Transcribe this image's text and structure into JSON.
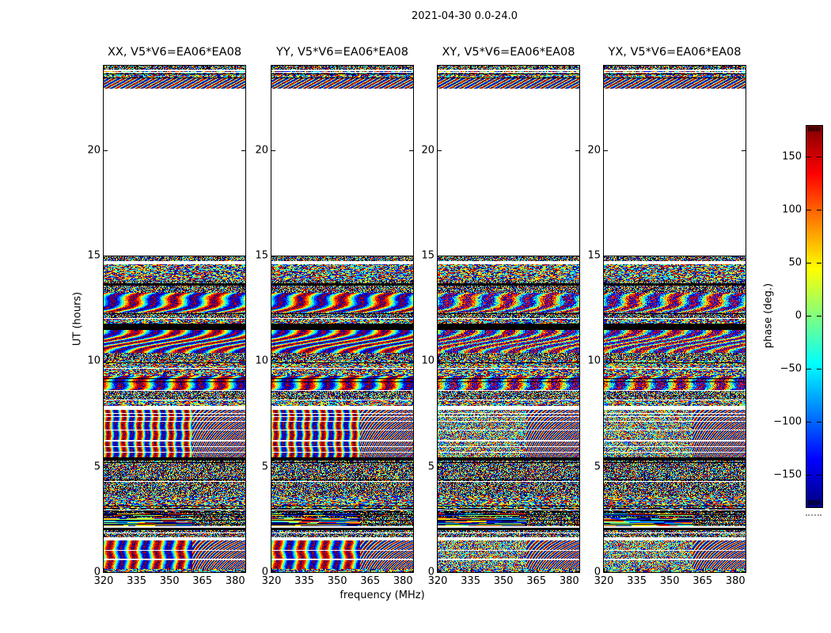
{
  "figure": {
    "title": "2021-04-30 0.0-24.0",
    "background": "#ffffff",
    "foreground": "#000000"
  },
  "chart_data": {
    "type": "heatmap",
    "title": "2021-04-30 0.0-24.0",
    "xlabel": "frequency (MHz)",
    "ylabel": "UT (hours)",
    "colorbar_label": "phase (deg.)",
    "x_range_mhz": [
      320,
      384.6
    ],
    "x_ticks": [
      320,
      335,
      350,
      365,
      380
    ],
    "y_range_hours": [
      0,
      24
    ],
    "y_ticks": [
      0,
      5,
      10,
      15,
      20
    ],
    "value_range_deg": [
      -180,
      180
    ],
    "colormap": "jet",
    "colorbar_ticks": [
      150,
      100,
      50,
      0,
      -50,
      -100,
      -150
    ],
    "colorbar_tick_labels": [
      "150",
      "100",
      "50",
      "0",
      "−50",
      "−100",
      "−150"
    ],
    "colormap_stops": [
      {
        "pos": 0.0,
        "color": "#7f0000"
      },
      {
        "pos": 0.125,
        "color": "#ff0000"
      },
      {
        "pos": 0.25,
        "color": "#ff8000"
      },
      {
        "pos": 0.375,
        "color": "#ffff00"
      },
      {
        "pos": 0.5,
        "color": "#80ff80"
      },
      {
        "pos": 0.625,
        "color": "#00ffff"
      },
      {
        "pos": 0.75,
        "color": "#0080ff"
      },
      {
        "pos": 0.875,
        "color": "#0000ff"
      },
      {
        "pos": 1.0,
        "color": "#00007f"
      }
    ],
    "panels": [
      {
        "id": "XX",
        "title": "XX, V5*V6=EA06*EA08",
        "family": "parallel",
        "seed": 11
      },
      {
        "id": "YY",
        "title": "YY, V5*V6=EA06*EA08",
        "family": "parallel",
        "seed": 23
      },
      {
        "id": "XY",
        "title": "XY, V5*V6=EA06*EA08",
        "family": "cross",
        "seed": 37
      },
      {
        "id": "YX",
        "title": "YX, V5*V6=EA06*EA08",
        "family": "cross",
        "seed": 51
      }
    ],
    "observed_time_ranges_hours": [
      [
        0.0,
        15.0
      ],
      [
        22.92,
        24.0
      ]
    ],
    "blank_time_ranges_hours": [
      [
        15.0,
        22.92
      ]
    ],
    "bands": [
      {
        "t_hi": 24.0,
        "t_lo": 23.82,
        "texture": "fine"
      },
      {
        "t_hi": 23.82,
        "t_lo": 23.74,
        "texture": "white"
      },
      {
        "t_hi": 23.74,
        "t_lo": 23.46,
        "texture": "noise"
      },
      {
        "t_hi": 23.46,
        "t_lo": 23.4,
        "texture": "black"
      },
      {
        "t_hi": 23.4,
        "t_lo": 22.92,
        "texture": "stripes",
        "stripe_cycles": 14,
        "white_lines_hours": []
      },
      {
        "t_hi": 22.92,
        "t_lo": 15.0,
        "texture": "white"
      },
      {
        "t_hi": 15.0,
        "t_lo": 14.74,
        "texture": "fine"
      },
      {
        "t_hi": 14.74,
        "t_lo": 14.62,
        "texture": "white"
      },
      {
        "t_hi": 14.62,
        "t_lo": 13.86,
        "texture": "noise"
      },
      {
        "t_hi": 13.86,
        "t_lo": 13.7,
        "texture": "fine"
      },
      {
        "t_hi": 13.7,
        "t_lo": 13.58,
        "texture": "black"
      },
      {
        "t_hi": 13.58,
        "t_lo": 13.24,
        "texture": "fine"
      },
      {
        "t_hi": 13.24,
        "t_lo": 12.3,
        "texture": "waves"
      },
      {
        "t_hi": 12.3,
        "t_lo": 12.0,
        "texture": "fine"
      },
      {
        "t_hi": 12.0,
        "t_lo": 11.8,
        "texture": "noise"
      },
      {
        "t_hi": 11.8,
        "t_lo": 11.5,
        "texture": "black"
      },
      {
        "t_hi": 11.5,
        "t_lo": 10.4,
        "texture": "waves"
      },
      {
        "t_hi": 10.4,
        "t_lo": 10.05,
        "texture": "fine"
      },
      {
        "t_hi": 10.05,
        "t_lo": 9.3,
        "texture": "noise"
      },
      {
        "t_hi": 9.3,
        "t_lo": 8.66,
        "texture": "waves"
      },
      {
        "t_hi": 8.66,
        "t_lo": 8.18,
        "texture": "fine"
      },
      {
        "t_hi": 8.18,
        "t_lo": 7.88,
        "texture": "noise"
      },
      {
        "t_hi": 7.88,
        "t_lo": 7.72,
        "texture": "white"
      },
      {
        "t_hi": 7.72,
        "t_lo": 5.44,
        "texture": "stripes",
        "stripe_cycles": 9,
        "white_lines_hours": [
          7.54,
          7.16,
          6.75,
          6.23,
          5.96
        ]
      },
      {
        "t_hi": 5.44,
        "t_lo": 5.3,
        "texture": "black"
      },
      {
        "t_hi": 5.3,
        "t_lo": 3.6,
        "texture": "fine"
      },
      {
        "t_hi": 3.6,
        "t_lo": 3.05,
        "texture": "noise"
      },
      {
        "t_hi": 3.05,
        "t_lo": 2.85,
        "texture": "blackdash"
      },
      {
        "t_hi": 2.85,
        "t_lo": 2.2,
        "texture": "hlines"
      },
      {
        "t_hi": 2.2,
        "t_lo": 2.1,
        "texture": "white"
      },
      {
        "t_hi": 2.1,
        "t_lo": 2.0,
        "texture": "black"
      },
      {
        "t_hi": 2.0,
        "t_lo": 1.65,
        "texture": "fine"
      },
      {
        "t_hi": 1.65,
        "t_lo": 1.5,
        "texture": "white"
      },
      {
        "t_hi": 1.5,
        "t_lo": 0.15,
        "texture": "stripes",
        "stripe_cycles": 6,
        "white_lines_hours": [
          1.05,
          0.62
        ]
      },
      {
        "t_hi": 0.15,
        "t_lo": 0.0,
        "texture": "noise"
      }
    ]
  }
}
